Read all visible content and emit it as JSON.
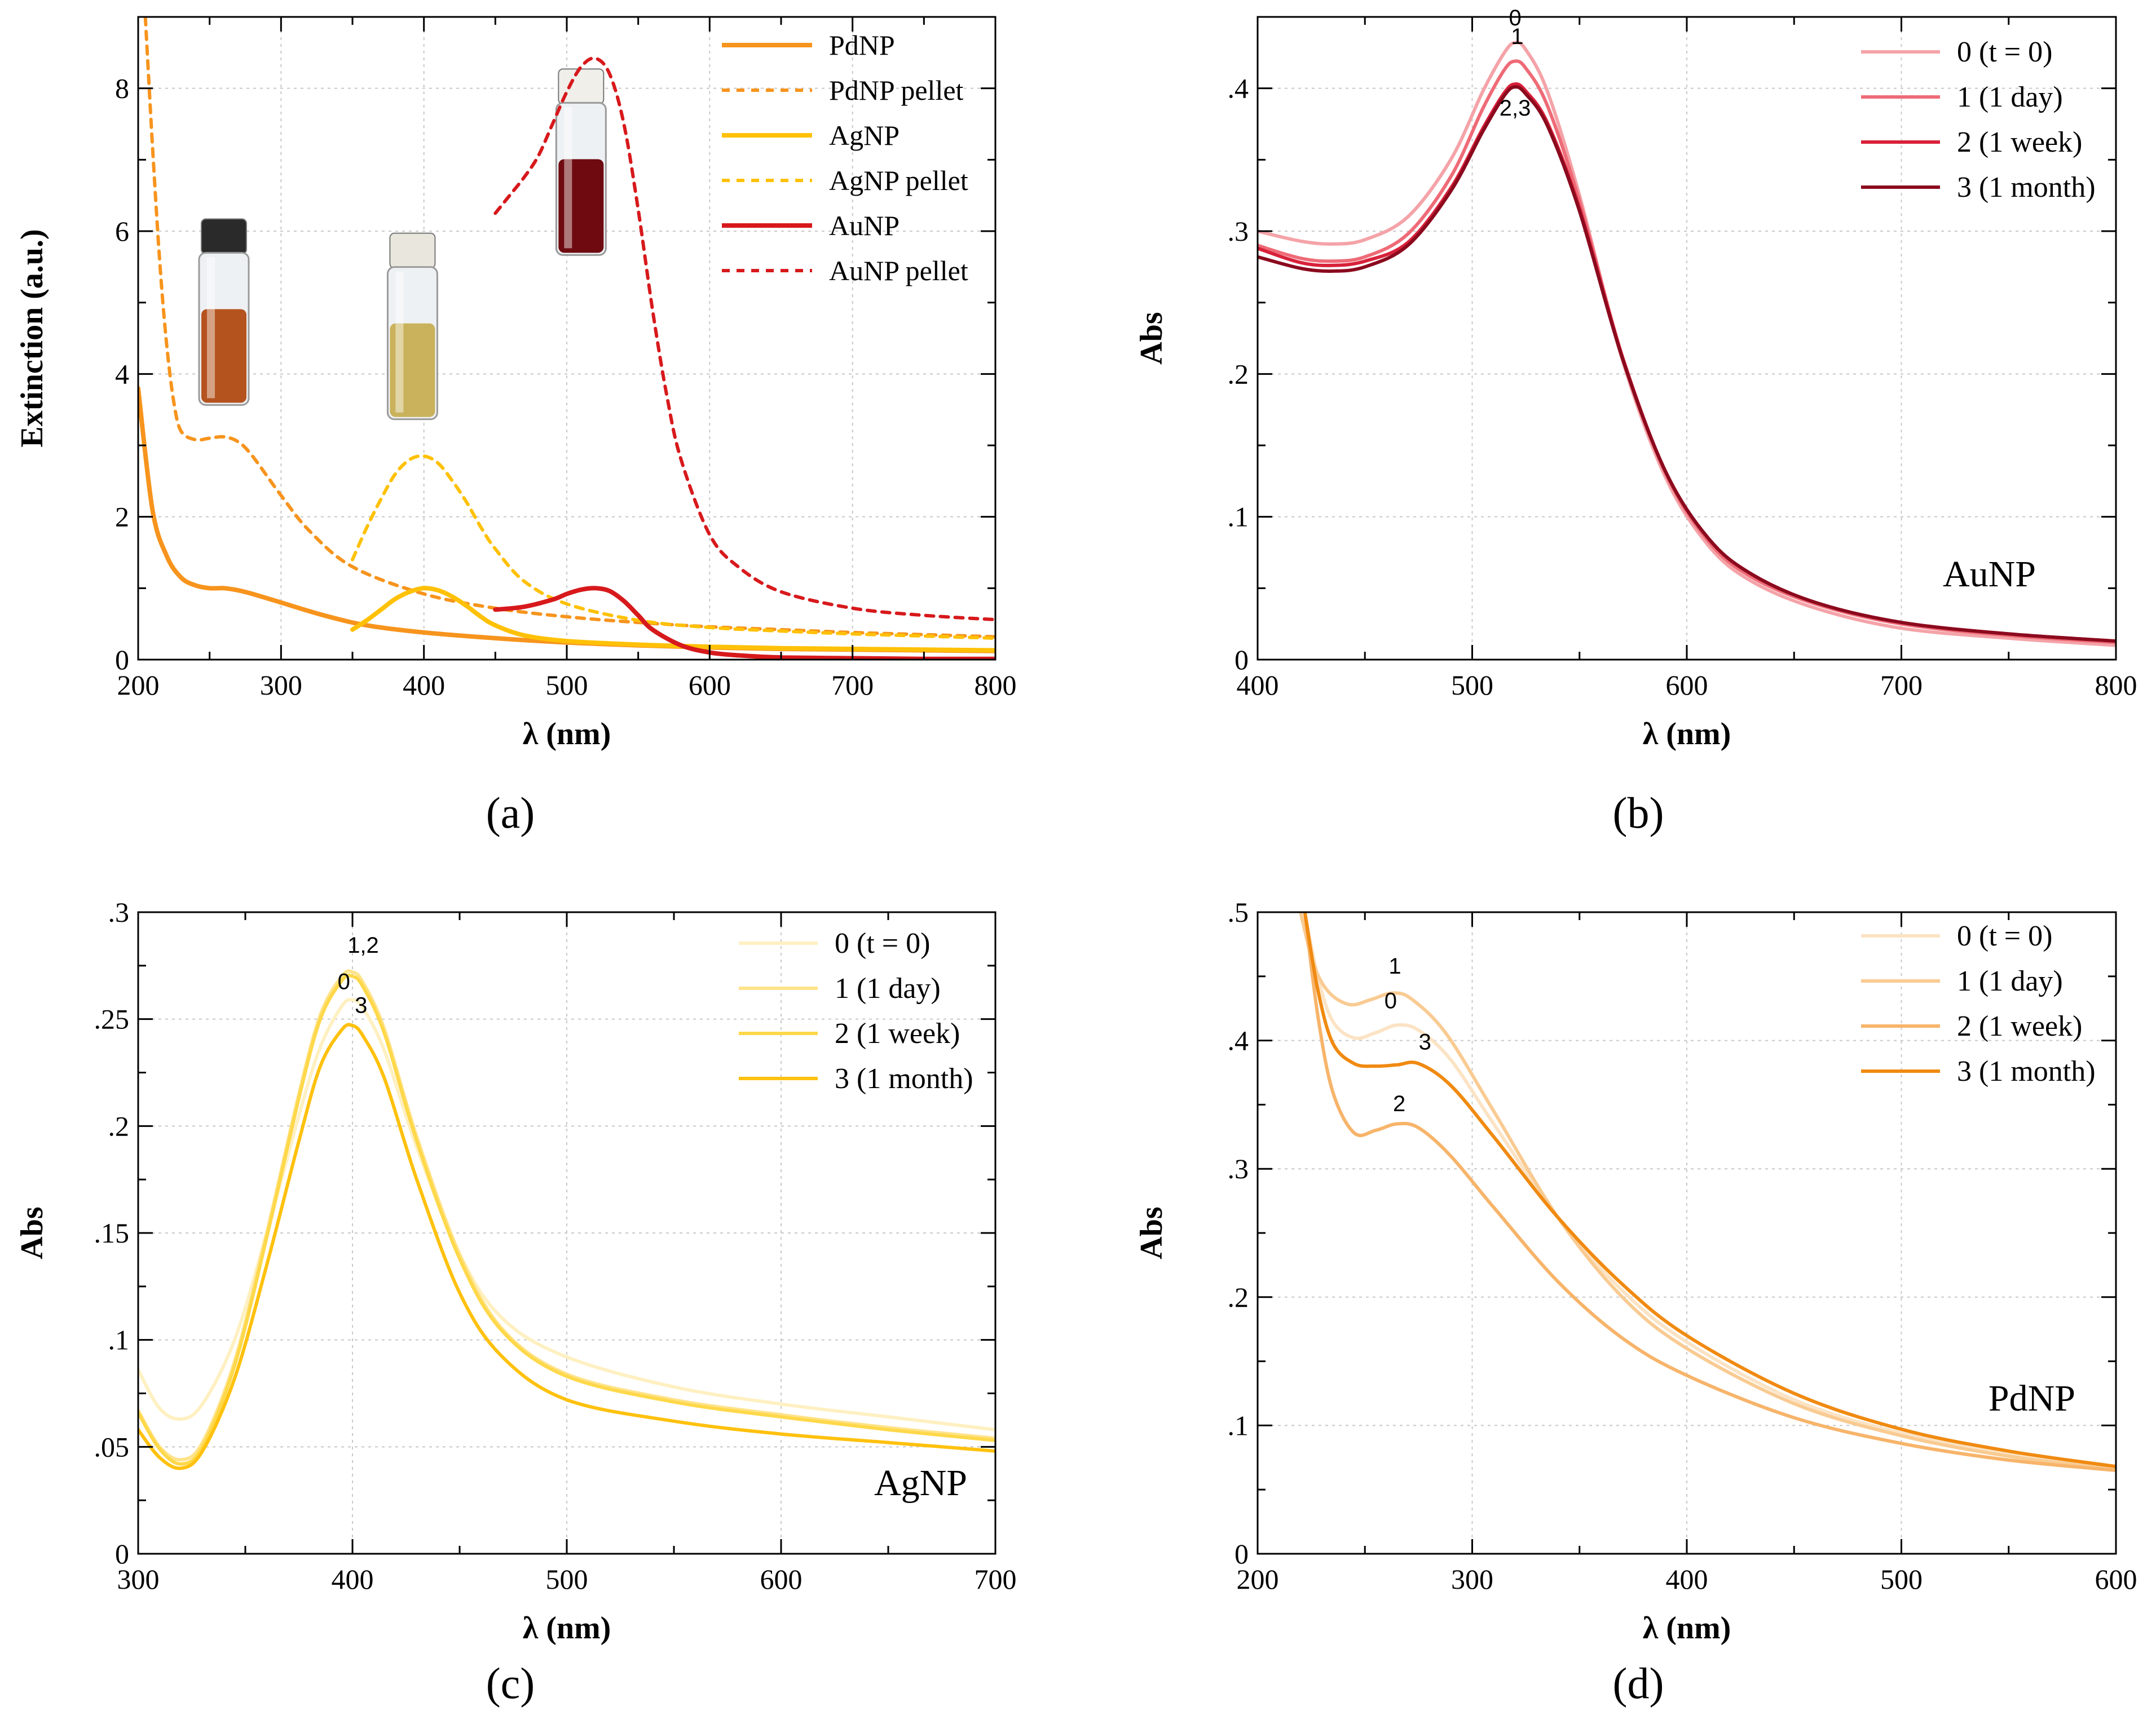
{
  "figure": {
    "panel_labels": [
      "(a)",
      "(b)",
      "(c)",
      "(d)"
    ]
  },
  "chart_data": [
    {
      "panel": "(a)",
      "type": "line",
      "title": "",
      "xlabel": "λ (nm)",
      "ylabel": "Extinction (a.u.)",
      "xlim": [
        200,
        800
      ],
      "ylim": [
        0,
        9
      ],
      "xticks": [
        200,
        300,
        400,
        500,
        600,
        700,
        800
      ],
      "yticks": [
        0,
        2,
        4,
        6,
        8
      ],
      "grid": true,
      "legend_position": "top-right",
      "series": [
        {
          "name": "PdNP",
          "color": "#F7941D",
          "dash": "solid",
          "x": [
            200,
            210,
            220,
            230,
            240,
            250,
            260,
            270,
            280,
            300,
            330,
            360,
            400,
            450,
            500,
            550,
            600,
            650,
            700,
            750,
            800
          ],
          "y": [
            3.8,
            2.1,
            1.45,
            1.15,
            1.04,
            1.0,
            1.0,
            0.97,
            0.92,
            0.8,
            0.62,
            0.48,
            0.38,
            0.3,
            0.24,
            0.2,
            0.17,
            0.15,
            0.14,
            0.13,
            0.12
          ]
        },
        {
          "name": "PdNP pellet",
          "color": "#F7941D",
          "dash": "dashed",
          "x": [
            205,
            210,
            215,
            220,
            225,
            230,
            240,
            250,
            260,
            270,
            280,
            300,
            320,
            350,
            400,
            450,
            500,
            550,
            600,
            650,
            700,
            750,
            800
          ],
          "y": [
            9.0,
            7.2,
            5.6,
            4.4,
            3.6,
            3.2,
            3.08,
            3.1,
            3.12,
            3.05,
            2.85,
            2.3,
            1.8,
            1.3,
            0.92,
            0.72,
            0.6,
            0.52,
            0.46,
            0.42,
            0.38,
            0.35,
            0.32
          ]
        },
        {
          "name": "AgNP",
          "color": "#FFC107",
          "dash": "solid",
          "x": [
            350,
            360,
            370,
            380,
            390,
            400,
            410,
            420,
            430,
            440,
            450,
            470,
            500,
            550,
            600,
            650,
            700,
            750,
            800
          ],
          "y": [
            0.42,
            0.55,
            0.7,
            0.85,
            0.95,
            1.0,
            0.97,
            0.88,
            0.75,
            0.6,
            0.48,
            0.34,
            0.26,
            0.21,
            0.18,
            0.16,
            0.15,
            0.14,
            0.13
          ]
        },
        {
          "name": "AgNP pellet",
          "color": "#FFC107",
          "dash": "dashed",
          "x": [
            350,
            360,
            370,
            380,
            390,
            400,
            410,
            420,
            430,
            440,
            450,
            470,
            500,
            550,
            600,
            650,
            700,
            750,
            800
          ],
          "y": [
            1.4,
            1.85,
            2.25,
            2.6,
            2.8,
            2.85,
            2.75,
            2.5,
            2.2,
            1.85,
            1.55,
            1.1,
            0.78,
            0.55,
            0.45,
            0.4,
            0.36,
            0.33,
            0.3
          ]
        },
        {
          "name": "AuNP",
          "color": "#D7191C",
          "dash": "solid",
          "x": [
            450,
            470,
            490,
            500,
            510,
            520,
            530,
            540,
            550,
            560,
            580,
            600,
            620,
            650,
            700,
            750,
            800
          ],
          "y": [
            0.7,
            0.74,
            0.84,
            0.92,
            0.98,
            1.0,
            0.96,
            0.82,
            0.62,
            0.42,
            0.2,
            0.1,
            0.06,
            0.03,
            0.02,
            0.01,
            0.01
          ]
        },
        {
          "name": "AuNP pellet",
          "color": "#D7191C",
          "dash": "dashed",
          "x": [
            450,
            460,
            470,
            480,
            490,
            500,
            510,
            520,
            530,
            540,
            550,
            560,
            570,
            580,
            600,
            620,
            650,
            700,
            750,
            800
          ],
          "y": [
            6.25,
            6.5,
            6.75,
            7.05,
            7.5,
            7.95,
            8.3,
            8.42,
            8.2,
            7.5,
            6.3,
            4.9,
            3.7,
            2.8,
            1.75,
            1.3,
            0.95,
            0.72,
            0.62,
            0.56
          ]
        }
      ],
      "images": [
        {
          "name": "PdNP vial",
          "cap_color": "#2a2a2a",
          "liquid_color": "#B5531E",
          "x": 260,
          "y": 4.75
        },
        {
          "name": "AgNP vial",
          "cap_color": "#E9E6DD",
          "liquid_color": "#C9B25B",
          "x": 392,
          "y": 4.55
        },
        {
          "name": "AuNP vial",
          "cap_color": "#F0EFEA",
          "liquid_color": "#6E0A10",
          "x": 510,
          "y": 6.85
        }
      ]
    },
    {
      "panel": "(b)",
      "type": "line",
      "title": "",
      "xlabel": "λ (nm)",
      "ylabel": "Abs",
      "xlim": [
        400,
        800
      ],
      "ylim": [
        0,
        0.45
      ],
      "xticks": [
        400,
        500,
        600,
        700,
        800
      ],
      "yticks": [
        0,
        0.1,
        0.2,
        0.3,
        0.4
      ],
      "grid": true,
      "legend_position": "top-right",
      "inset_label": "AuNP",
      "series": [
        {
          "name": "0 (t = 0)",
          "color": "#F4A3A8",
          "x": [
            400,
            420,
            435,
            450,
            470,
            490,
            505,
            515,
            520,
            525,
            535,
            550,
            570,
            590,
            610,
            630,
            660,
            700,
            750,
            800
          ],
          "y": [
            0.3,
            0.293,
            0.291,
            0.294,
            0.31,
            0.35,
            0.398,
            0.425,
            0.432,
            0.427,
            0.398,
            0.325,
            0.21,
            0.128,
            0.08,
            0.055,
            0.036,
            0.022,
            0.015,
            0.01
          ]
        },
        {
          "name": "1 (1 day)",
          "color": "#EE6B77",
          "x": [
            400,
            420,
            435,
            450,
            470,
            490,
            505,
            515,
            520,
            525,
            535,
            550,
            570,
            590,
            610,
            630,
            660,
            700,
            750,
            800
          ],
          "y": [
            0.29,
            0.281,
            0.279,
            0.282,
            0.298,
            0.338,
            0.386,
            0.413,
            0.419,
            0.414,
            0.388,
            0.321,
            0.212,
            0.131,
            0.083,
            0.058,
            0.039,
            0.025,
            0.017,
            0.012
          ]
        },
        {
          "name": "2 (1 week)",
          "color": "#D8213A",
          "x": [
            400,
            420,
            435,
            450,
            470,
            490,
            505,
            515,
            520,
            525,
            535,
            550,
            570,
            590,
            610,
            630,
            660,
            700,
            750,
            800
          ],
          "y": [
            0.288,
            0.278,
            0.276,
            0.279,
            0.292,
            0.33,
            0.372,
            0.397,
            0.403,
            0.398,
            0.376,
            0.316,
            0.212,
            0.132,
            0.085,
            0.06,
            0.04,
            0.026,
            0.018,
            0.013
          ]
        },
        {
          "name": "3 (1 month)",
          "color": "#8B0A1E",
          "x": [
            400,
            420,
            435,
            450,
            470,
            490,
            505,
            515,
            520,
            525,
            535,
            550,
            570,
            590,
            610,
            630,
            660,
            700,
            750,
            800
          ],
          "y": [
            0.282,
            0.274,
            0.272,
            0.275,
            0.29,
            0.328,
            0.37,
            0.395,
            0.401,
            0.396,
            0.374,
            0.314,
            0.211,
            0.132,
            0.085,
            0.06,
            0.04,
            0.026,
            0.018,
            0.013
          ]
        }
      ],
      "annotations": [
        {
          "text": "0",
          "x": 520,
          "y": 0.444
        },
        {
          "text": "1",
          "x": 521,
          "y": 0.431
        },
        {
          "text": "2,3",
          "x": 520,
          "y": 0.381
        }
      ]
    },
    {
      "panel": "(c)",
      "type": "line",
      "title": "",
      "xlabel": "λ (nm)",
      "ylabel": "Abs",
      "xlim": [
        300,
        700
      ],
      "ylim": [
        0,
        0.3
      ],
      "xticks": [
        300,
        400,
        500,
        600,
        700
      ],
      "yticks": [
        0,
        0.05,
        0.1,
        0.15,
        0.2,
        0.25,
        0.3
      ],
      "grid": true,
      "legend_position": "top-right",
      "inset_label": "AgNP",
      "series": [
        {
          "name": "0 (t = 0)",
          "color": "#FFF0C2",
          "x": [
            300,
            310,
            320,
            330,
            345,
            360,
            375,
            385,
            395,
            400,
            405,
            415,
            430,
            450,
            470,
            500,
            550,
            600,
            650,
            700
          ],
          "y": [
            0.086,
            0.068,
            0.063,
            0.07,
            0.1,
            0.15,
            0.205,
            0.237,
            0.256,
            0.259,
            0.255,
            0.235,
            0.19,
            0.14,
            0.11,
            0.092,
            0.078,
            0.07,
            0.064,
            0.058
          ]
        },
        {
          "name": "1 (1 day)",
          "color": "#FFE38A",
          "x": [
            300,
            310,
            320,
            330,
            345,
            360,
            375,
            385,
            395,
            400,
            405,
            415,
            430,
            450,
            470,
            500,
            550,
            600,
            650,
            700
          ],
          "y": [
            0.067,
            0.05,
            0.044,
            0.052,
            0.09,
            0.15,
            0.215,
            0.252,
            0.27,
            0.272,
            0.267,
            0.245,
            0.195,
            0.14,
            0.105,
            0.084,
            0.072,
            0.065,
            0.059,
            0.054
          ]
        },
        {
          "name": "2 (1 week)",
          "color": "#FFD84A",
          "x": [
            300,
            310,
            320,
            330,
            345,
            360,
            375,
            385,
            395,
            400,
            405,
            415,
            430,
            450,
            470,
            500,
            550,
            600,
            650,
            700
          ],
          "y": [
            0.066,
            0.049,
            0.042,
            0.05,
            0.088,
            0.148,
            0.213,
            0.25,
            0.268,
            0.27,
            0.265,
            0.243,
            0.193,
            0.138,
            0.104,
            0.083,
            0.071,
            0.064,
            0.058,
            0.053
          ]
        },
        {
          "name": "3 (1 month)",
          "color": "#FFC10E",
          "x": [
            300,
            310,
            320,
            330,
            345,
            360,
            375,
            385,
            395,
            400,
            405,
            415,
            430,
            450,
            470,
            500,
            550,
            600,
            650,
            700
          ],
          "y": [
            0.058,
            0.045,
            0.04,
            0.048,
            0.082,
            0.135,
            0.193,
            0.228,
            0.245,
            0.247,
            0.242,
            0.222,
            0.175,
            0.122,
            0.092,
            0.072,
            0.062,
            0.056,
            0.052,
            0.048
          ]
        }
      ],
      "annotations": [
        {
          "text": "1,2",
          "x": 405,
          "y": 0.281
        },
        {
          "text": "0",
          "x": 396,
          "y": 0.264
        },
        {
          "text": "3",
          "x": 404,
          "y": 0.253
        }
      ]
    },
    {
      "panel": "(d)",
      "type": "line",
      "title": "",
      "xlabel": "λ (nm)",
      "ylabel": "Abs",
      "xlim": [
        200,
        600
      ],
      "ylim": [
        0,
        0.5
      ],
      "xticks": [
        200,
        300,
        400,
        500,
        600
      ],
      "yticks": [
        0,
        0.1,
        0.2,
        0.3,
        0.4,
        0.5
      ],
      "grid": true,
      "legend_position": "top-right",
      "inset_label": "PdNP",
      "series": [
        {
          "name": "0 (t = 0)",
          "color": "#FBE3C4",
          "x": [
            222,
            228,
            235,
            245,
            255,
            265,
            275,
            290,
            310,
            340,
            370,
            400,
            450,
            500,
            550,
            600
          ],
          "y": [
            0.5,
            0.45,
            0.415,
            0.402,
            0.406,
            0.412,
            0.408,
            0.385,
            0.335,
            0.262,
            0.205,
            0.165,
            0.12,
            0.094,
            0.078,
            0.068
          ]
        },
        {
          "name": "1 (1 day)",
          "color": "#F9CB92",
          "x": [
            220,
            226,
            233,
            243,
            253,
            263,
            272,
            288,
            310,
            340,
            370,
            400,
            450,
            500,
            550,
            600
          ],
          "y": [
            0.5,
            0.46,
            0.438,
            0.428,
            0.432,
            0.437,
            0.432,
            0.405,
            0.345,
            0.262,
            0.2,
            0.16,
            0.117,
            0.092,
            0.076,
            0.066
          ]
        },
        {
          "name": "2 (1 week)",
          "color": "#F7B46A",
          "x": [
            222,
            228,
            235,
            245,
            255,
            265,
            275,
            290,
            310,
            340,
            370,
            400,
            450,
            500,
            550,
            600
          ],
          "y": [
            0.5,
            0.42,
            0.36,
            0.328,
            0.33,
            0.335,
            0.332,
            0.31,
            0.27,
            0.212,
            0.168,
            0.139,
            0.106,
            0.086,
            0.073,
            0.065
          ]
        },
        {
          "name": "3 (1 month)",
          "color": "#F08A11",
          "x": [
            222,
            228,
            235,
            245,
            255,
            265,
            275,
            290,
            310,
            340,
            370,
            400,
            450,
            500,
            550,
            600
          ],
          "y": [
            0.5,
            0.44,
            0.398,
            0.382,
            0.38,
            0.381,
            0.382,
            0.365,
            0.325,
            0.262,
            0.21,
            0.17,
            0.125,
            0.097,
            0.08,
            0.068
          ]
        }
      ],
      "annotations": [
        {
          "text": "1",
          "x": 264,
          "y": 0.452
        },
        {
          "text": "0",
          "x": 262,
          "y": 0.425
        },
        {
          "text": "3",
          "x": 278,
          "y": 0.393
        },
        {
          "text": "2",
          "x": 266,
          "y": 0.345
        }
      ]
    }
  ]
}
